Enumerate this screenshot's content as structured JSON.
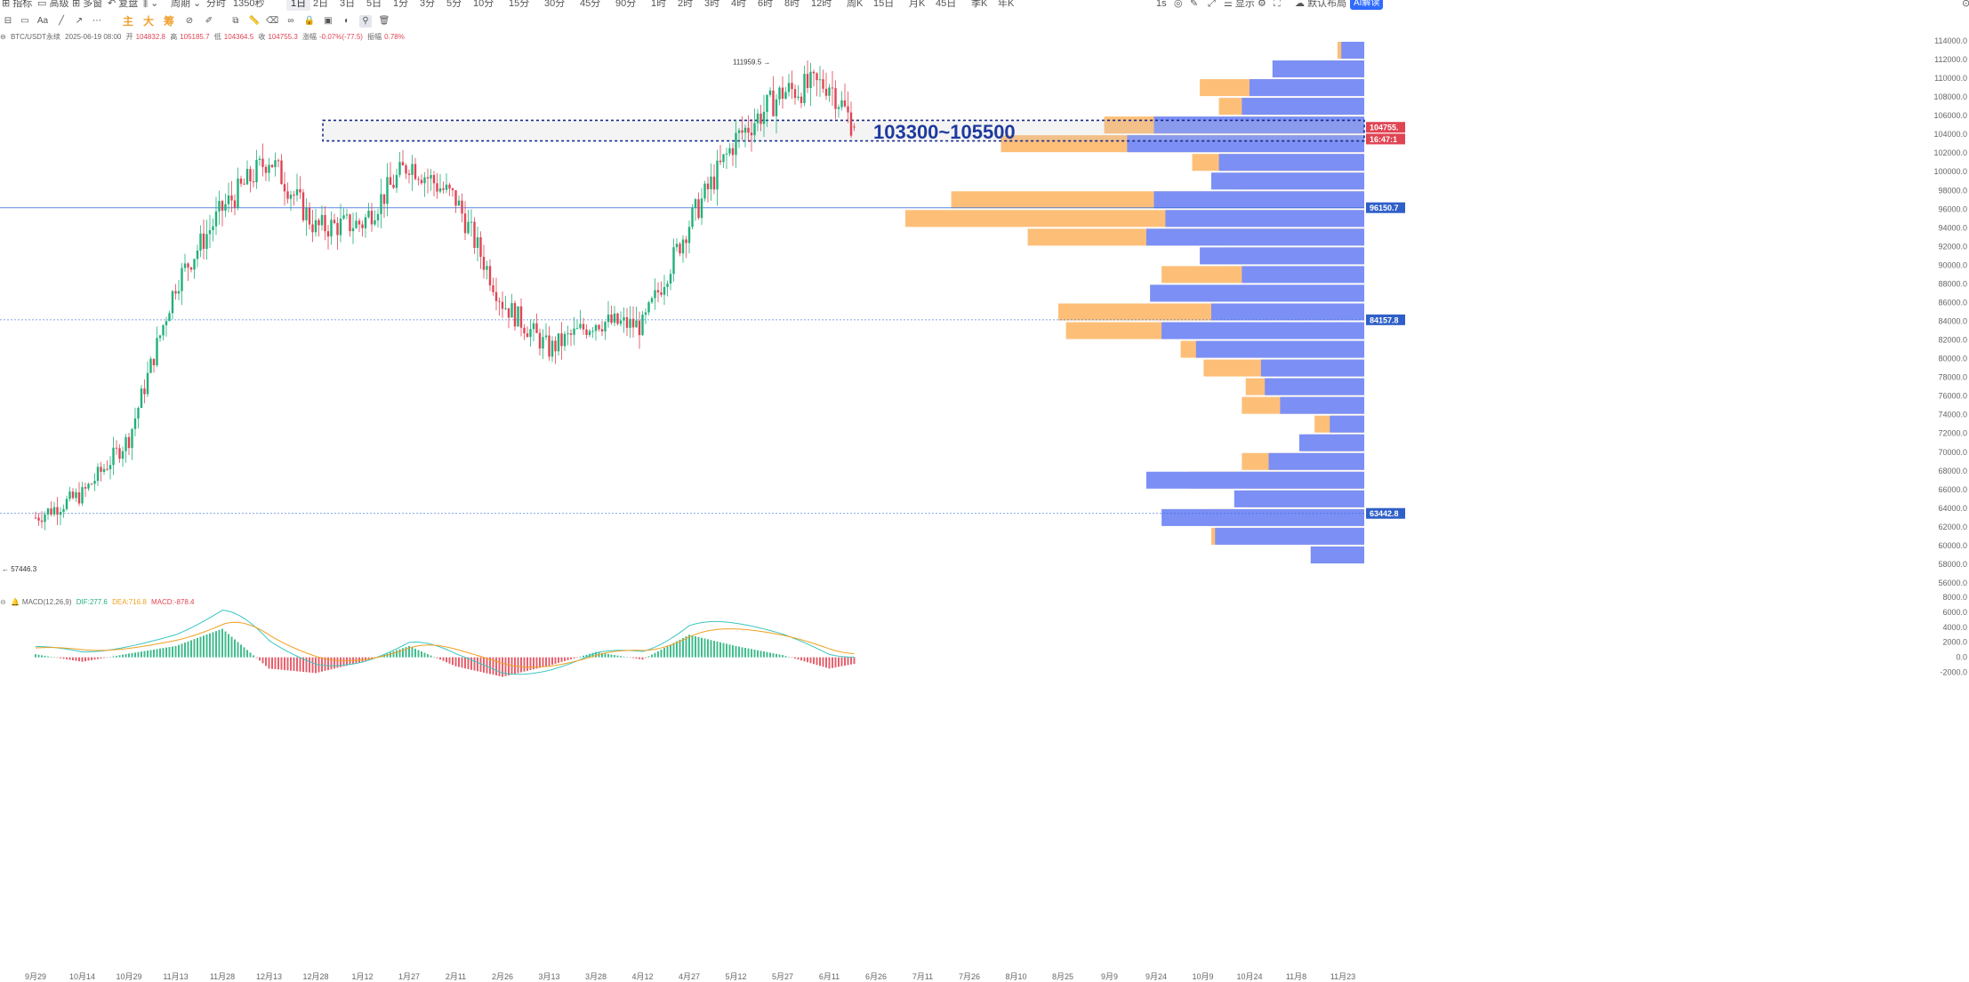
{
  "toolbar": {
    "indicators": "指标",
    "advanced": "高级",
    "multi_window": "多窗",
    "replay": "复盘",
    "period": "周期",
    "periods": [
      "分时",
      "1350秒",
      "1日",
      "2日",
      "3日",
      "5日",
      "1分",
      "3分",
      "5分",
      "10分",
      "15分",
      "30分",
      "45分",
      "90分",
      "1时",
      "2时",
      "3时",
      "4时",
      "6时",
      "8时",
      "12时",
      "周K",
      "15日",
      "月K",
      "45日",
      "季K",
      "年K"
    ],
    "active_period": "1日",
    "interval": "1s",
    "display": "显示",
    "layout": "默认布局",
    "ai": "AI解读"
  },
  "draw_toolbar": {
    "main": "主",
    "big": "大",
    "chip": "筹"
  },
  "info": {
    "symbol": "BTC/USDT永续",
    "datetime": "2025-06-19 08:00",
    "open_label": "开",
    "open": "104832.8",
    "high_label": "高",
    "high": "105185.7",
    "low_label": "低",
    "low": "104364.5",
    "close_label": "收",
    "close": "104755.3",
    "change_label": "涨幅",
    "change": "-0.07%(-77.5)",
    "amplitude_label": "振幅",
    "amplitude": "0.78%"
  },
  "macd": {
    "label": "MACD(12,26,9)",
    "dif": "DIF:277.6",
    "dea": "DEA:716.8",
    "macd": "MACD:-878.4"
  },
  "colors": {
    "up": "#21b07a",
    "down": "#e04453",
    "zone_border": "#1a2a8a",
    "zone_text": "#1e3a9e",
    "vp_orange": "#fdbf78",
    "vp_blue": "#7b8ff5",
    "price_line": "#2f6bd8",
    "dif_line": "#39c6c0",
    "dea_line": "#f0a020"
  },
  "chart_data": {
    "type": "candlestick",
    "symbol": "BTC/USDT永续",
    "timeframe": "1日",
    "y_ticks": [
      "114000.0",
      "112000.0",
      "110000.0",
      "108000.0",
      "106000.0",
      "104000.0",
      "102000.0",
      "100000.0",
      "98000.0",
      "96000.0",
      "94000.0",
      "92000.0",
      "90000.0",
      "88000.0",
      "86000.0",
      "84000.0",
      "82000.0",
      "80000.0",
      "78000.0",
      "76000.0",
      "74000.0",
      "72000.0",
      "70000.0",
      "68000.0",
      "66000.0",
      "64000.0",
      "62000.0",
      "60000.0",
      "58000.0",
      "56000.0"
    ],
    "x_ticks": [
      "9月29",
      "10月14",
      "10月29",
      "11月13",
      "11月28",
      "12月13",
      "12月28",
      "1月12",
      "1月27",
      "2月11",
      "2月26",
      "3月13",
      "3月28",
      "4月12",
      "4月27",
      "5月12",
      "5月27",
      "6月11",
      "6月26",
      "7月11",
      "7月26",
      "8月10",
      "8月25",
      "9月9",
      "9月24",
      "10月9",
      "10月24",
      "11月8",
      "11月23"
    ],
    "ylim": [
      56000,
      114000
    ],
    "key_prices": [
      {
        "time": "2024-09-29",
        "value": 63000
      },
      {
        "time": "2024-10-14",
        "value": 65500
      },
      {
        "time": "2024-10-29",
        "value": 71500
      },
      {
        "time": "2024-11-13",
        "value": 88000
      },
      {
        "time": "2024-11-28",
        "value": 96000
      },
      {
        "time": "2024-12-13",
        "value": 101500
      },
      {
        "time": "2024-12-28",
        "value": 94000
      },
      {
        "time": "2025-01-12",
        "value": 94500
      },
      {
        "time": "2025-01-27",
        "value": 101000
      },
      {
        "time": "2025-02-11",
        "value": 97000
      },
      {
        "time": "2025-02-26",
        "value": 86000
      },
      {
        "time": "2025-03-13",
        "value": 81000
      },
      {
        "time": "2025-03-28",
        "value": 84000
      },
      {
        "time": "2025-04-12",
        "value": 83500
      },
      {
        "time": "2025-04-27",
        "value": 94500
      },
      {
        "time": "2025-05-12",
        "value": 103500
      },
      {
        "time": "2025-05-27",
        "value": 108500
      },
      {
        "time": "2025-06-11",
        "value": 109500
      },
      {
        "time": "2025-06-19",
        "value": 104755.3
      }
    ],
    "highest_label": "111959.5",
    "lowest_label": "57446.3",
    "last_candle": {
      "open": 104832.8,
      "high": 105185.7,
      "low": 104364.5,
      "close": 104755.3
    },
    "zone": {
      "low": 103300,
      "high": 105500,
      "label": "103300~105500"
    },
    "price_tags": [
      {
        "label": "104755.",
        "value": 104755.3,
        "color": "#e04453"
      },
      {
        "label": "16:47:1",
        "value": 103500,
        "color": "#e04453"
      },
      {
        "label": "96150.7",
        "value": 96150.7,
        "color": "#2f5fc8"
      },
      {
        "label": "84157.8",
        "value": 84157.8,
        "color": "#2f5fc8"
      },
      {
        "label": "63442.8",
        "value": 63442.8,
        "color": "#2f5fc8"
      }
    ],
    "volume_profile": {
      "bins": [
        113000,
        111000,
        109000,
        107000,
        105000,
        103000,
        101000,
        99000,
        97000,
        95000,
        93000,
        91000,
        89000,
        87000,
        85000,
        83000,
        81000,
        79000,
        77000,
        75000,
        73000,
        71000,
        69000,
        67000,
        65000,
        63000,
        61000,
        59000
      ],
      "up": [
        0.06,
        0.24,
        0.3,
        0.32,
        0.55,
        0.62,
        0.38,
        0.4,
        0.55,
        0.52,
        0.57,
        0.43,
        0.32,
        0.56,
        0.4,
        0.53,
        0.44,
        0.27,
        0.26,
        0.22,
        0.09,
        0.17,
        0.25,
        0.57,
        0.34,
        0.53,
        0.39,
        0.14
      ],
      "down": [
        0.07,
        0.21,
        0.43,
        0.38,
        0.68,
        0.95,
        0.45,
        0.33,
        1.08,
        1.2,
        0.88,
        0.37,
        0.53,
        0.56,
        0.8,
        0.78,
        0.48,
        0.42,
        0.31,
        0.32,
        0.13,
        0.16,
        0.32,
        0.46,
        0.31,
        0.42,
        0.4,
        0.14
      ],
      "poc": 95000
    },
    "macd_y_ticks": [
      "8000.0",
      "6000.0",
      "4000.0",
      "2000.0",
      "0.0",
      "-2000.0"
    ],
    "macd_ylim": [
      -3000,
      8000
    ],
    "macd_summary": {
      "dif": 277.6,
      "dea": 716.8,
      "macd": -878.4
    },
    "macd_hist": [
      {
        "time": "2024-09-29",
        "value": 400
      },
      {
        "time": "2024-10-14",
        "value": -600
      },
      {
        "time": "2024-10-29",
        "value": 500
      },
      {
        "time": "2024-11-13",
        "value": 1500
      },
      {
        "time": "2024-11-28",
        "value": 3800
      },
      {
        "time": "2024-12-13",
        "value": -1500
      },
      {
        "time": "2024-12-28",
        "value": -2100
      },
      {
        "time": "2025-01-12",
        "value": -600
      },
      {
        "time": "2025-01-27",
        "value": 1500
      },
      {
        "time": "2025-02-11",
        "value": -1200
      },
      {
        "time": "2025-02-26",
        "value": -2600
      },
      {
        "time": "2025-03-13",
        "value": -1100
      },
      {
        "time": "2025-03-28",
        "value": 700
      },
      {
        "time": "2025-04-12",
        "value": -300
      },
      {
        "time": "2025-04-27",
        "value": 3000
      },
      {
        "time": "2025-05-12",
        "value": 1500
      },
      {
        "time": "2025-05-27",
        "value": 300
      },
      {
        "time": "2025-06-11",
        "value": -1500
      },
      {
        "time": "2025-06-19",
        "value": -878.4
      }
    ]
  }
}
